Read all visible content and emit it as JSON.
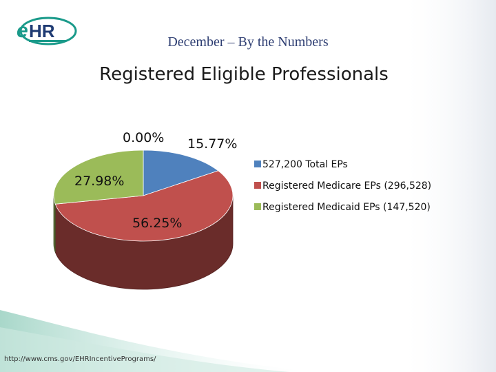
{
  "header": {
    "subtitle": "December – By the Numbers",
    "title": "Registered Eligible Professionals",
    "logo_text": "eHR"
  },
  "footer": {
    "url": "http://www.cms.gov/EHRIncentivePrograms/"
  },
  "colors": {
    "blue": "#4f81bd",
    "red": "#c0504d",
    "green": "#9bbb59",
    "logo_teal": "#1a9a8a",
    "logo_navy": "#1f3b73"
  },
  "chart_data": {
    "type": "pie",
    "title": "Registered Eligible Professionals",
    "series": [
      {
        "name": "527,200 Total EPs",
        "value": 15.77,
        "label": "15.77%",
        "color": "#4f81bd"
      },
      {
        "name": "Registered Medicare EPs (296,528)",
        "value": 56.25,
        "label": "56.25%",
        "color": "#c0504d"
      },
      {
        "name": "Registered Medicaid EPs (147,520)",
        "value": 27.98,
        "label": "27.98%",
        "color": "#9bbb59"
      }
    ],
    "extra_label": "0.00%",
    "legend_position": "right"
  }
}
